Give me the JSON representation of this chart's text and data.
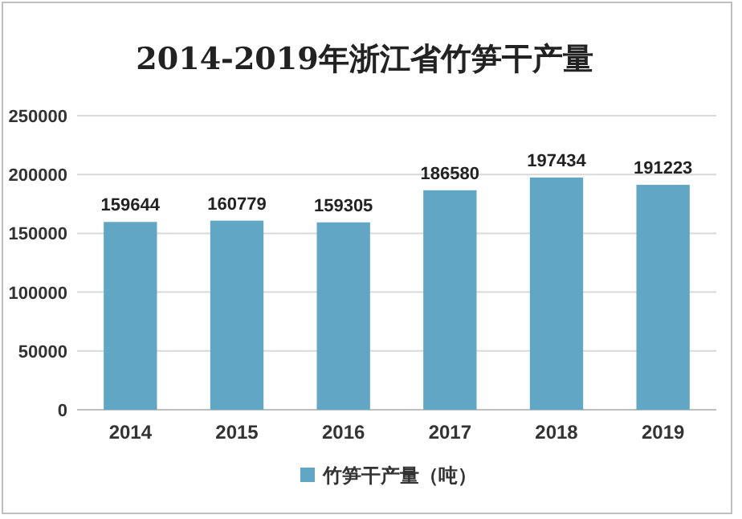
{
  "chart_data": {
    "type": "bar",
    "title": "2014-2019年浙江省竹笋干产量",
    "categories": [
      "2014",
      "2015",
      "2016",
      "2017",
      "2018",
      "2019"
    ],
    "series": [
      {
        "name": "竹笋干产量（吨）",
        "color": "#62a6c6",
        "values": [
          159644,
          160779,
          159305,
          186580,
          197434,
          191223
        ]
      }
    ],
    "ylim": [
      0,
      250000
    ],
    "yticks": [
      0,
      50000,
      100000,
      150000,
      200000,
      250000
    ],
    "grid": "y",
    "legend": "bottom",
    "data_labels": true
  }
}
